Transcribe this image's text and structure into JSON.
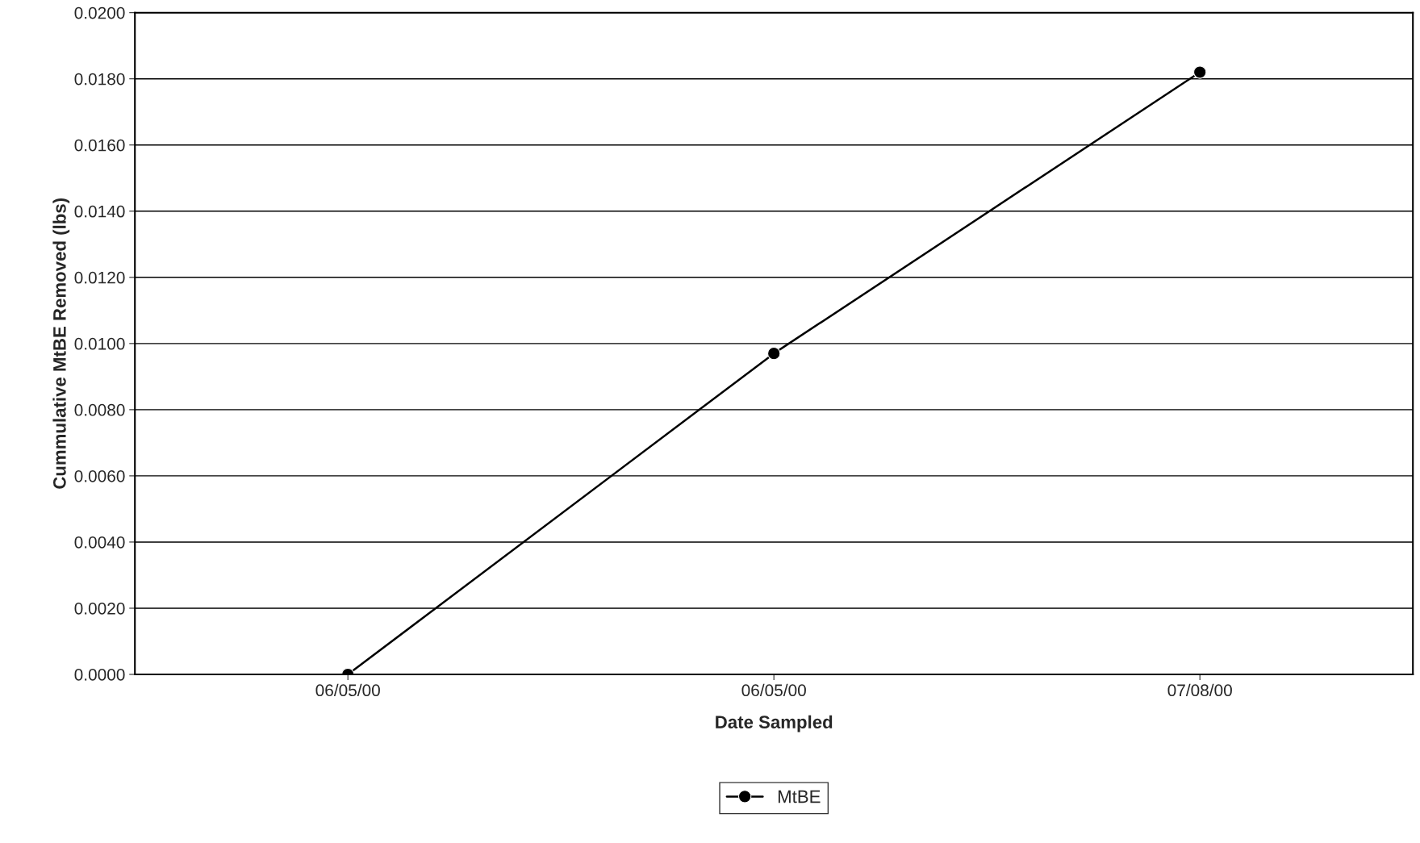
{
  "chart_data": {
    "type": "line",
    "xlabel": "Date Sampled",
    "ylabel": "Cummulative MtBE Removed (lbs)",
    "categories": [
      "06/05/00",
      "06/05/00",
      "07/08/00"
    ],
    "series": [
      {
        "name": "MtBE",
        "color": "#000000",
        "values": [
          0.0,
          0.0097,
          0.0182
        ]
      }
    ],
    "ylim": [
      0,
      0.02
    ],
    "yticks": [
      {
        "value": 0,
        "label": "0.0000"
      },
      {
        "value": 0.002,
        "label": "0.0020"
      },
      {
        "value": 0.004,
        "label": "0.0040"
      },
      {
        "value": 0.006,
        "label": "0.0060"
      },
      {
        "value": 0.008,
        "label": "0.0080"
      },
      {
        "value": 0.01,
        "label": "0.0100"
      },
      {
        "value": 0.012,
        "label": "0.0120"
      },
      {
        "value": 0.014,
        "label": "0.0140"
      },
      {
        "value": 0.016,
        "label": "0.0160"
      },
      {
        "value": 0.018,
        "label": "0.0180"
      },
      {
        "value": 0.02,
        "label": "0.0200"
      }
    ],
    "grid": "y",
    "legend": "bottom",
    "marker": "circle",
    "line_style": "solid"
  }
}
